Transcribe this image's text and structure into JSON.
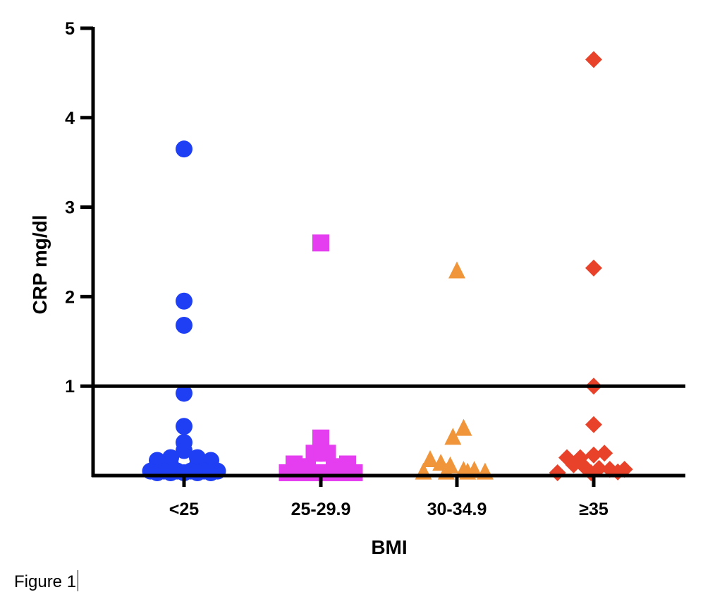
{
  "chart_data": {
    "type": "scatter",
    "xlabel": "BMI",
    "ylabel": "CRP mg/dl",
    "ylim": [
      0,
      5
    ],
    "yticks": [
      1,
      2,
      3,
      4,
      5
    ],
    "reference_line_y": 1,
    "grid": false,
    "categories": [
      "<25",
      "25-29.9",
      "30-34.9",
      "≥35"
    ],
    "series": [
      {
        "category": "<25",
        "marker": "circle",
        "color": "#1f3ff5",
        "points": [
          {
            "dx": 0,
            "y": 3.65
          },
          {
            "dx": 0,
            "y": 1.95
          },
          {
            "dx": 0,
            "y": 1.68
          },
          {
            "dx": 0,
            "y": 0.92
          },
          {
            "dx": 0,
            "y": 0.55
          },
          {
            "dx": 0,
            "y": 0.37
          },
          {
            "dx": 0,
            "y": 0.28
          },
          {
            "dx": -1,
            "y": 0.2
          },
          {
            "dx": 1,
            "y": 0.2
          },
          {
            "dx": -2,
            "y": 0.17
          },
          {
            "dx": 2,
            "y": 0.17
          },
          {
            "dx": -1,
            "y": 0.12
          },
          {
            "dx": 1,
            "y": 0.12
          },
          {
            "dx": -2.5,
            "y": 0.05
          },
          {
            "dx": -1.5,
            "y": 0.05
          },
          {
            "dx": -0.5,
            "y": 0.05
          },
          {
            "dx": 0.5,
            "y": 0.05
          },
          {
            "dx": 1.5,
            "y": 0.05
          },
          {
            "dx": 2.5,
            "y": 0.05
          },
          {
            "dx": -2,
            "y": 0.02
          },
          {
            "dx": -1,
            "y": 0.02
          },
          {
            "dx": 0,
            "y": 0.02
          },
          {
            "dx": 1,
            "y": 0.02
          },
          {
            "dx": 2,
            "y": 0.02
          }
        ]
      },
      {
        "category": "25-29.9",
        "marker": "square",
        "color": "#e53df0",
        "points": [
          {
            "dx": 0,
            "y": 2.6
          },
          {
            "dx": 0,
            "y": 0.42
          },
          {
            "dx": -0.5,
            "y": 0.25
          },
          {
            "dx": 0.5,
            "y": 0.25
          },
          {
            "dx": -2,
            "y": 0.13
          },
          {
            "dx": 2,
            "y": 0.13
          },
          {
            "dx": -1,
            "y": 0.1
          },
          {
            "dx": 1,
            "y": 0.1
          },
          {
            "dx": -2.5,
            "y": 0.03
          },
          {
            "dx": -1.5,
            "y": 0.03
          },
          {
            "dx": -0.5,
            "y": 0.03
          },
          {
            "dx": 0.5,
            "y": 0.03
          },
          {
            "dx": 1.5,
            "y": 0.03
          },
          {
            "dx": 2.5,
            "y": 0.03
          }
        ]
      },
      {
        "category": "30-34.9",
        "marker": "triangle",
        "color": "#f0953a",
        "points": [
          {
            "dx": 0,
            "y": 2.28
          },
          {
            "dx": 0.5,
            "y": 0.52
          },
          {
            "dx": -0.3,
            "y": 0.42
          },
          {
            "dx": -2,
            "y": 0.17
          },
          {
            "dx": -1.2,
            "y": 0.13
          },
          {
            "dx": -2.5,
            "y": 0.03
          },
          {
            "dx": -0.5,
            "y": 0.1
          },
          {
            "dx": 0.5,
            "y": 0.05
          },
          {
            "dx": 1.3,
            "y": 0.05
          },
          {
            "dx": 2.1,
            "y": 0.03
          },
          {
            "dx": -0.8,
            "y": 0.01
          },
          {
            "dx": 0.8,
            "y": 0.01
          }
        ]
      },
      {
        "category": "≥35",
        "marker": "diamond",
        "color": "#e8432a",
        "points": [
          {
            "dx": 0,
            "y": 4.65
          },
          {
            "dx": 0,
            "y": 2.32
          },
          {
            "dx": 0,
            "y": 1.0
          },
          {
            "dx": 0,
            "y": 0.57
          },
          {
            "dx": -2,
            "y": 0.2
          },
          {
            "dx": -1,
            "y": 0.2
          },
          {
            "dx": 0,
            "y": 0.23
          },
          {
            "dx": 0.8,
            "y": 0.25
          },
          {
            "dx": -1.5,
            "y": 0.12
          },
          {
            "dx": -0.7,
            "y": 0.1
          },
          {
            "dx": 0.4,
            "y": 0.08
          },
          {
            "dx": 1.2,
            "y": 0.07
          },
          {
            "dx": 2.3,
            "y": 0.07
          },
          {
            "dx": 1.8,
            "y": 0.04
          },
          {
            "dx": -2.7,
            "y": 0.03
          },
          {
            "dx": -0.2,
            "y": 0.02
          }
        ]
      }
    ]
  },
  "caption": "Figure 1"
}
